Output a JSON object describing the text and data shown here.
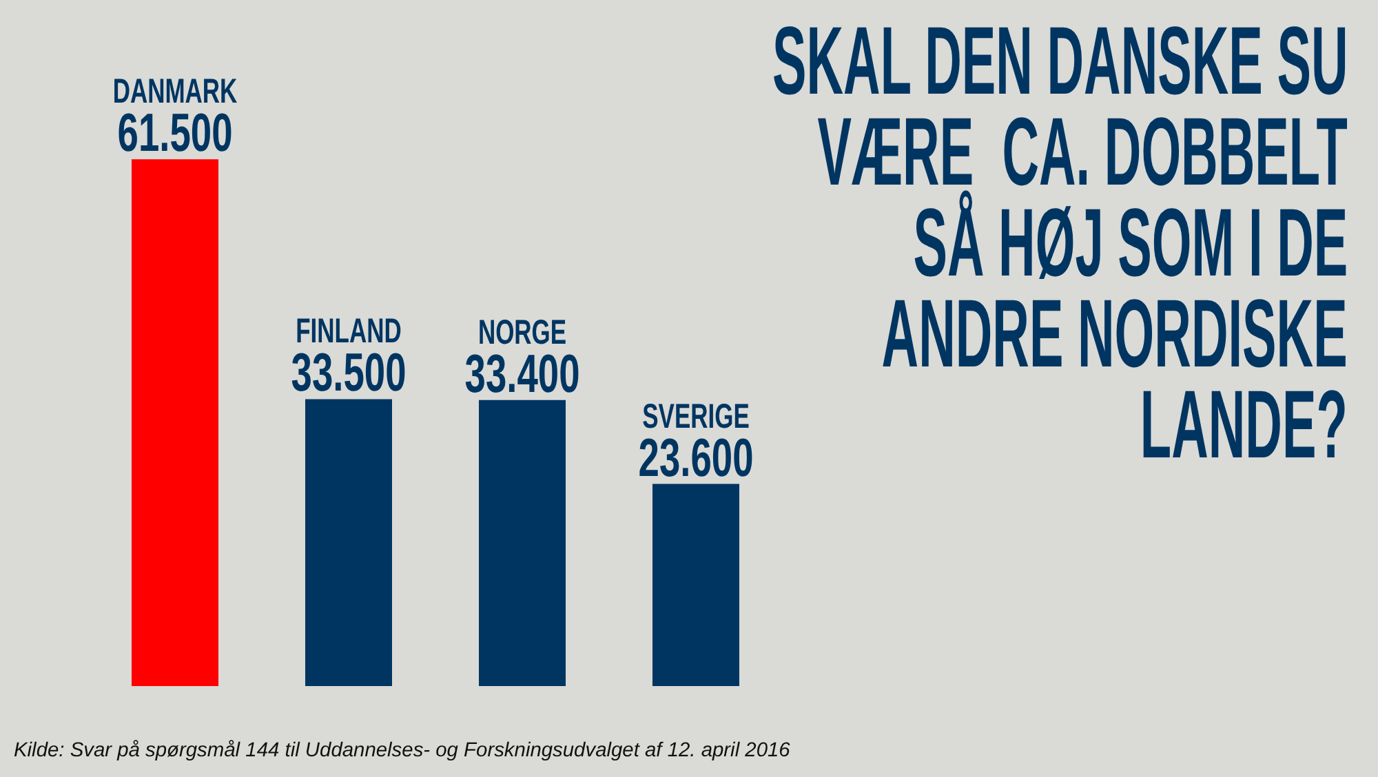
{
  "chart_data": {
    "type": "bar",
    "title": "SKAL DEN DANSKE SU VÆRE  CA. DOBBELT SÅ HØJ SOM I DE ANDRE NORDISKE LANDE?",
    "categories": [
      "DANMARK",
      "FINLAND",
      "NORGE",
      "SVERIGE"
    ],
    "values": [
      61500,
      33500,
      33400,
      23600
    ],
    "value_labels": [
      "61.500",
      "33.500",
      "33.400",
      "23.600"
    ],
    "colors": [
      "#ff0000",
      "#003562",
      "#003562",
      "#003562"
    ],
    "annotations": [
      "Kilde: Svar på spørgsmål 144 til Uddannelses- og Forskningsudvalget af 12. april 2016"
    ]
  }
}
